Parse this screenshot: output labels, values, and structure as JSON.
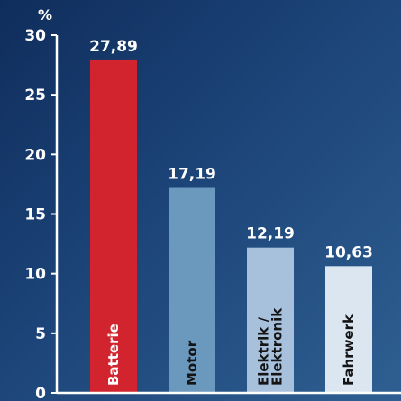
{
  "chart_data": {
    "type": "bar",
    "categories": [
      "Batterie",
      "Motor",
      "Elektrik / Elektronik",
      "Fahrwerk"
    ],
    "category_lines": [
      [
        "Batterie"
      ],
      [
        "Motor"
      ],
      [
        "Elektrik /",
        "Elektronik"
      ],
      [
        "Fahrwerk"
      ]
    ],
    "values": [
      27.89,
      17.19,
      12.19,
      10.63
    ],
    "value_labels": [
      "27,89",
      "17,19",
      "12,19",
      "10,63"
    ],
    "yunit": "%",
    "ylim": [
      0,
      30
    ],
    "yticks": [
      0,
      5,
      10,
      15,
      20,
      25,
      30
    ],
    "bar_colors": [
      "#d1242f",
      "#6b98bd",
      "#a7c1dd",
      "#dbe6f1"
    ],
    "bar_label_colors": [
      "#ffffff",
      "#141414",
      "#141414",
      "#141414"
    ],
    "axis_color": "#ffffff",
    "grid": false
  }
}
